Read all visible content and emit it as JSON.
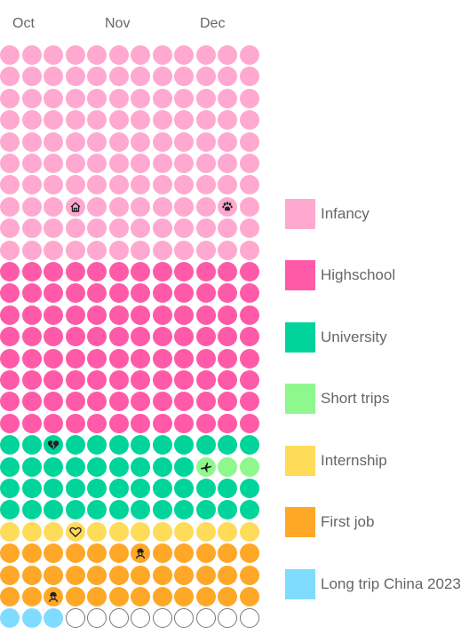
{
  "months": [
    "Oct",
    "Nov",
    "Dec"
  ],
  "colors": {
    "infancy": "#ffa9d0",
    "highschool": "#ff5aa8",
    "university": "#00d49a",
    "short_trips": "#8ef78e",
    "internship": "#ffdb5a",
    "first_job": "#ffa726",
    "long_trip": "#7fdcff",
    "empty_border": "#777777"
  },
  "legend": [
    {
      "key": "infancy",
      "label": "Infancy",
      "color": "#ffa9d0"
    },
    {
      "key": "highschool",
      "label": "Highschool",
      "color": "#ff5aa8"
    },
    {
      "key": "university",
      "label": "University",
      "color": "#00d49a"
    },
    {
      "key": "short_trips",
      "label": "Short trips",
      "color": "#8ef78e"
    },
    {
      "key": "internship",
      "label": "Internship",
      "color": "#ffdb5a"
    },
    {
      "key": "first_job",
      "label": "First job",
      "color": "#ffa726"
    },
    {
      "key": "long_trip",
      "label": "Long trip China 2023",
      "color": "#7fdcff"
    }
  ],
  "grid": {
    "columns": 12,
    "rows": [
      [
        "infancy",
        "infancy",
        "infancy",
        "infancy",
        "infancy",
        "infancy",
        "infancy",
        "infancy",
        "infancy",
        "infancy",
        "infancy",
        "infancy"
      ],
      [
        "infancy",
        "infancy",
        "infancy",
        "infancy",
        "infancy",
        "infancy",
        "infancy",
        "infancy",
        "infancy",
        "infancy",
        "infancy",
        "infancy"
      ],
      [
        "infancy",
        "infancy",
        "infancy",
        "infancy",
        "infancy",
        "infancy",
        "infancy",
        "infancy",
        "infancy",
        "infancy",
        "infancy",
        "infancy"
      ],
      [
        "infancy",
        "infancy",
        "infancy",
        "infancy",
        "infancy",
        "infancy",
        "infancy",
        "infancy",
        "infancy",
        "infancy",
        "infancy",
        "infancy"
      ],
      [
        "infancy",
        "infancy",
        "infancy",
        "infancy",
        "infancy",
        "infancy",
        "infancy",
        "infancy",
        "infancy",
        "infancy",
        "infancy",
        "infancy"
      ],
      [
        "infancy",
        "infancy",
        "infancy",
        "infancy",
        "infancy",
        "infancy",
        "infancy",
        "infancy",
        "infancy",
        "infancy",
        "infancy",
        "infancy"
      ],
      [
        "infancy",
        "infancy",
        "infancy",
        "infancy",
        "infancy",
        "infancy",
        "infancy",
        "infancy",
        "infancy",
        "infancy",
        "infancy",
        "infancy"
      ],
      [
        "infancy",
        "infancy",
        "infancy",
        "infancy",
        "infancy",
        "infancy",
        "infancy",
        "infancy",
        "infancy",
        "infancy",
        "infancy",
        "infancy"
      ],
      [
        "infancy",
        "infancy",
        "infancy",
        "infancy",
        "infancy",
        "infancy",
        "infancy",
        "infancy",
        "infancy",
        "infancy",
        "infancy",
        "infancy"
      ],
      [
        "infancy",
        "infancy",
        "infancy",
        "infancy",
        "infancy",
        "infancy",
        "infancy",
        "infancy",
        "infancy",
        "infancy",
        "infancy",
        "infancy"
      ],
      [
        "highschool",
        "highschool",
        "highschool",
        "highschool",
        "highschool",
        "highschool",
        "highschool",
        "highschool",
        "highschool",
        "highschool",
        "highschool",
        "highschool"
      ],
      [
        "highschool",
        "highschool",
        "highschool",
        "highschool",
        "highschool",
        "highschool",
        "highschool",
        "highschool",
        "highschool",
        "highschool",
        "highschool",
        "highschool"
      ],
      [
        "highschool",
        "highschool",
        "highschool",
        "highschool",
        "highschool",
        "highschool",
        "highschool",
        "highschool",
        "highschool",
        "highschool",
        "highschool",
        "highschool"
      ],
      [
        "highschool",
        "highschool",
        "highschool",
        "highschool",
        "highschool",
        "highschool",
        "highschool",
        "highschool",
        "highschool",
        "highschool",
        "highschool",
        "highschool"
      ],
      [
        "highschool",
        "highschool",
        "highschool",
        "highschool",
        "highschool",
        "highschool",
        "highschool",
        "highschool",
        "highschool",
        "highschool",
        "highschool",
        "highschool"
      ],
      [
        "highschool",
        "highschool",
        "highschool",
        "highschool",
        "highschool",
        "highschool",
        "highschool",
        "highschool",
        "highschool",
        "highschool",
        "highschool",
        "highschool"
      ],
      [
        "highschool",
        "highschool",
        "highschool",
        "highschool",
        "highschool",
        "highschool",
        "highschool",
        "highschool",
        "highschool",
        "highschool",
        "highschool",
        "highschool"
      ],
      [
        "highschool",
        "highschool",
        "highschool",
        "highschool",
        "highschool",
        "highschool",
        "highschool",
        "highschool",
        "highschool",
        "highschool",
        "highschool",
        "highschool"
      ],
      [
        "university",
        "university",
        "university",
        "university",
        "university",
        "university",
        "university",
        "university",
        "university",
        "university",
        "university",
        "university"
      ],
      [
        "university",
        "university",
        "university",
        "university",
        "university",
        "university",
        "university",
        "university",
        "university",
        "short_trips",
        "short_trips",
        "short_trips"
      ],
      [
        "university",
        "university",
        "university",
        "university",
        "university",
        "university",
        "university",
        "university",
        "university",
        "university",
        "university",
        "university"
      ],
      [
        "university",
        "university",
        "university",
        "university",
        "university",
        "university",
        "university",
        "university",
        "university",
        "university",
        "university",
        "university"
      ],
      [
        "internship",
        "internship",
        "internship",
        "internship",
        "internship",
        "internship",
        "internship",
        "internship",
        "internship",
        "internship",
        "internship",
        "internship"
      ],
      [
        "first_job",
        "first_job",
        "first_job",
        "first_job",
        "first_job",
        "first_job",
        "first_job",
        "first_job",
        "first_job",
        "first_job",
        "first_job",
        "first_job"
      ],
      [
        "first_job",
        "first_job",
        "first_job",
        "first_job",
        "first_job",
        "first_job",
        "first_job",
        "first_job",
        "first_job",
        "first_job",
        "first_job",
        "first_job"
      ],
      [
        "first_job",
        "first_job",
        "first_job",
        "first_job",
        "first_job",
        "first_job",
        "first_job",
        "first_job",
        "first_job",
        "first_job",
        "first_job",
        "first_job"
      ],
      [
        "long_trip",
        "long_trip",
        "long_trip",
        "empty",
        "empty",
        "empty",
        "empty",
        "empty",
        "empty",
        "empty",
        "empty",
        "empty"
      ]
    ],
    "icons": [
      {
        "row": 7,
        "col": 3,
        "icon": "home-icon"
      },
      {
        "row": 7,
        "col": 10,
        "icon": "paw-icon"
      },
      {
        "row": 18,
        "col": 2,
        "icon": "broken-heart-icon"
      },
      {
        "row": 19,
        "col": 9,
        "icon": "airplane-icon"
      },
      {
        "row": 22,
        "col": 3,
        "icon": "heart-icon"
      },
      {
        "row": 23,
        "col": 6,
        "icon": "worker-icon"
      },
      {
        "row": 25,
        "col": 2,
        "icon": "worker-icon"
      }
    ]
  }
}
